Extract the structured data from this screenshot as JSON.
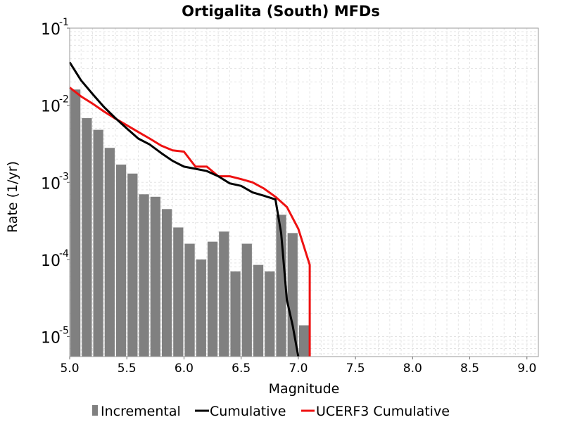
{
  "chart_data": {
    "type": "bar+line",
    "title": "Ortigalita (South) MFDs",
    "xlabel": "Magnitude",
    "ylabel": "Rate (1/yr)",
    "xlim": [
      5.0,
      9.1
    ],
    "ylim": [
      5.5e-06,
      0.1
    ],
    "y_scale": "log",
    "grid": true,
    "legend_position": "bottom",
    "xticks": [
      "5.0",
      "5.5",
      "6.0",
      "6.5",
      "7.0",
      "7.5",
      "8.0",
      "8.5",
      "9.0"
    ],
    "xtick_values": [
      5.0,
      5.5,
      6.0,
      6.5,
      7.0,
      7.5,
      8.0,
      8.5,
      9.0
    ],
    "yticks": [
      {
        "base": "10",
        "exp": "-1",
        "value": 0.1
      },
      {
        "base": "10",
        "exp": "-2",
        "value": 0.01
      },
      {
        "base": "10",
        "exp": "-3",
        "value": 0.001
      },
      {
        "base": "10",
        "exp": "-4",
        "value": 0.0001
      },
      {
        "base": "10",
        "exp": "-5",
        "value": 1e-05
      }
    ],
    "series": [
      {
        "name": "Incremental",
        "type": "bar",
        "color": "#808080",
        "x": [
          5.0,
          5.1,
          5.2,
          5.3,
          5.4,
          5.5,
          5.6,
          5.7,
          5.8,
          5.9,
          6.0,
          6.1,
          6.2,
          6.3,
          6.4,
          6.5,
          6.6,
          6.7,
          6.8,
          6.9,
          7.0
        ],
        "y": [
          0.016,
          0.0068,
          0.0048,
          0.0028,
          0.0017,
          0.0013,
          0.0007,
          0.00065,
          0.00045,
          0.00026,
          0.00016,
          0.0001,
          0.00017,
          0.00023,
          7e-05,
          0.00016,
          8.5e-05,
          7e-05,
          0.00038,
          0.00022,
          1.4e-05
        ]
      },
      {
        "name": "Cumulative",
        "type": "line",
        "color": "#000000",
        "x": [
          5.0,
          5.1,
          5.2,
          5.3,
          5.4,
          5.5,
          5.6,
          5.7,
          5.8,
          5.9,
          6.0,
          6.1,
          6.2,
          6.3,
          6.4,
          6.5,
          6.6,
          6.7,
          6.8,
          6.85,
          6.9,
          6.95,
          7.0
        ],
        "y": [
          0.036,
          0.021,
          0.014,
          0.0095,
          0.0068,
          0.005,
          0.0037,
          0.0031,
          0.0024,
          0.0019,
          0.0016,
          0.0015,
          0.0014,
          0.0012,
          0.00097,
          0.0009,
          0.00074,
          0.00067,
          0.0006,
          0.00022,
          3e-05,
          1.4e-05,
          5.5e-06
        ]
      },
      {
        "name": "UCERF3 Cumulative",
        "type": "line",
        "color": "#ee1111",
        "x": [
          5.0,
          5.1,
          5.2,
          5.3,
          5.4,
          5.5,
          5.6,
          5.7,
          5.8,
          5.9,
          6.0,
          6.1,
          6.2,
          6.3,
          6.4,
          6.5,
          6.6,
          6.7,
          6.8,
          6.9,
          7.0,
          7.1,
          7.1
        ],
        "y": [
          0.017,
          0.013,
          0.0105,
          0.0083,
          0.0067,
          0.0055,
          0.0045,
          0.0037,
          0.003,
          0.0026,
          0.0025,
          0.0016,
          0.0016,
          0.0012,
          0.0012,
          0.0011,
          0.001,
          0.00083,
          0.00065,
          0.00048,
          0.00025,
          8.5e-05,
          5.5e-06
        ]
      }
    ]
  }
}
